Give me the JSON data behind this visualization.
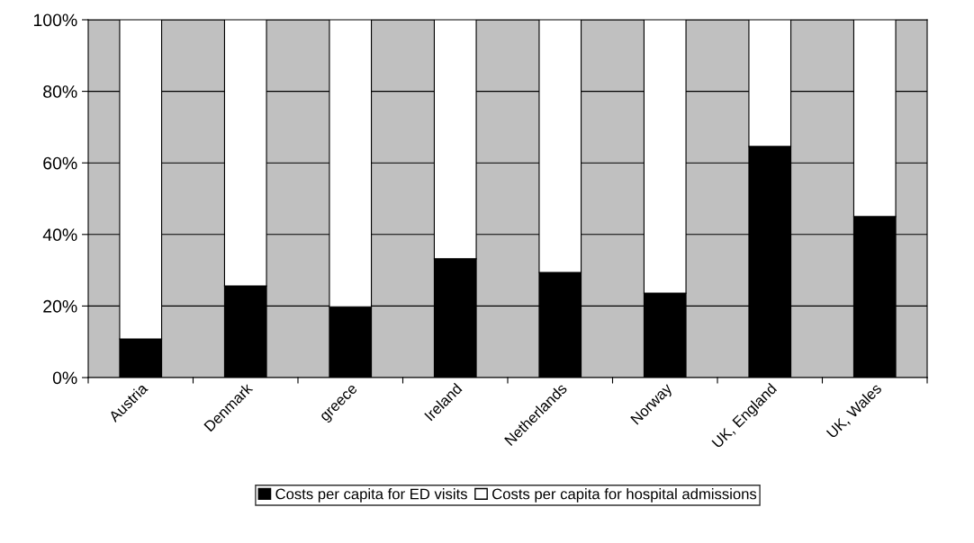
{
  "chart_data": {
    "type": "bar",
    "stacked": true,
    "categories": [
      "Austria",
      "Denmark",
      "greece",
      "Ireland",
      "Netherlands",
      "Norway",
      "UK, England",
      "UK, Wales"
    ],
    "series": [
      {
        "name": "Costs per capita for ED visits",
        "color": "#000000",
        "values": [
          10.8,
          25.6,
          19.8,
          33.2,
          29.4,
          23.6,
          64.6,
          45.0
        ]
      },
      {
        "name": "Costs per capita for hospital admissions",
        "color": "#ffffff",
        "values": [
          89.2,
          74.4,
          80.2,
          66.8,
          70.6,
          76.4,
          35.4,
          55.0
        ]
      }
    ],
    "ylim": [
      0,
      100
    ],
    "yticks": [
      {
        "value": 0,
        "label": "0%"
      },
      {
        "value": 20,
        "label": "20%"
      },
      {
        "value": 40,
        "label": "40%"
      },
      {
        "value": 60,
        "label": "60%"
      },
      {
        "value": 80,
        "label": "80%"
      },
      {
        "value": 100,
        "label": "100%"
      }
    ],
    "grid": "y",
    "legend": "bottom"
  }
}
